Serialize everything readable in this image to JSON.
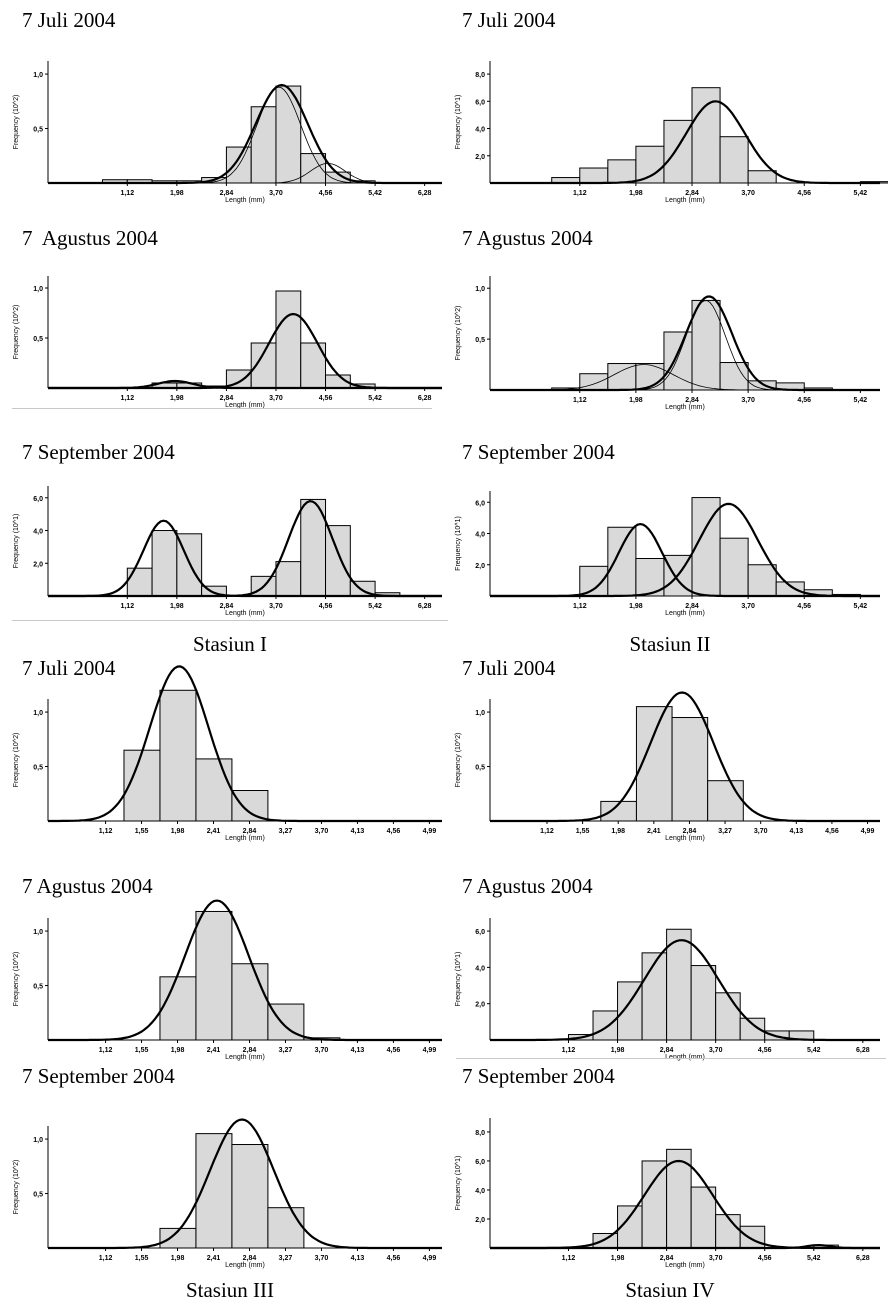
{
  "station_labels": [
    "Stasiun I",
    "Stasiun II",
    "Stasiun III",
    "Stasiun IV"
  ],
  "colors": {
    "bar_fill": "#d9d9d9",
    "bar_stroke": "#000000",
    "curve": "#000000",
    "axis": "#000000"
  },
  "chart_data": [
    {
      "type": "bar",
      "station": "Stasiun I",
      "title": "7 Juli 2004",
      "xlabel": "Length (mm)",
      "ylabel": "Frequency (10^2)",
      "x_ticks": [
        "1,12",
        "1,98",
        "2,84",
        "3,70",
        "4,56",
        "5,42",
        "6,28"
      ],
      "y_ticks": [
        "0,5",
        "1,0"
      ],
      "bins": [
        {
          "from": 0.69,
          "to": 1.12,
          "value": 0.03
        },
        {
          "from": 1.12,
          "to": 1.55,
          "value": 0.03
        },
        {
          "from": 1.55,
          "to": 1.98,
          "value": 0.02
        },
        {
          "from": 1.98,
          "to": 2.41,
          "value": 0.02
        },
        {
          "from": 2.41,
          "to": 2.84,
          "value": 0.05
        },
        {
          "from": 2.84,
          "to": 3.27,
          "value": 0.33
        },
        {
          "from": 3.27,
          "to": 3.7,
          "value": 0.7
        },
        {
          "from": 3.7,
          "to": 4.13,
          "value": 0.89
        },
        {
          "from": 4.13,
          "to": 4.56,
          "value": 0.27
        },
        {
          "from": 4.56,
          "to": 4.99,
          "value": 0.1
        },
        {
          "from": 4.99,
          "to": 5.42,
          "value": 0.02
        }
      ],
      "curves": [
        {
          "mean": 3.8,
          "sd": 0.45,
          "peak": 0.9,
          "total": true
        },
        {
          "mean": 3.75,
          "sd": 0.38,
          "peak": 0.88,
          "total": false
        },
        {
          "mean": 4.6,
          "sd": 0.3,
          "peak": 0.18,
          "total": false
        }
      ]
    },
    {
      "type": "bar",
      "station": "Stasiun II",
      "title": "7 Juli 2004",
      "xlabel": "Length (mm)",
      "ylabel": "Frequency (10^1)",
      "x_ticks": [
        "1,12",
        "1,98",
        "2,84",
        "3,70",
        "4,56",
        "5,42"
      ],
      "y_ticks": [
        "2,0",
        "4,0",
        "6,0",
        "8,0"
      ],
      "bins": [
        {
          "from": 0.69,
          "to": 1.12,
          "value": 0.4
        },
        {
          "from": 1.12,
          "to": 1.55,
          "value": 1.1
        },
        {
          "from": 1.55,
          "to": 1.98,
          "value": 1.7
        },
        {
          "from": 1.98,
          "to": 2.41,
          "value": 2.7
        },
        {
          "from": 2.41,
          "to": 2.84,
          "value": 4.6
        },
        {
          "from": 2.84,
          "to": 3.27,
          "value": 7.0
        },
        {
          "from": 3.27,
          "to": 3.7,
          "value": 3.4
        },
        {
          "from": 3.7,
          "to": 4.13,
          "value": 0.9
        },
        {
          "from": 5.42,
          "to": 5.85,
          "value": 0.1
        }
      ],
      "curves": [
        {
          "mean": 3.2,
          "sd": 0.45,
          "peak": 6.0,
          "total": true
        }
      ]
    },
    {
      "type": "bar",
      "station": "Stasiun I",
      "title": "7  Agustus 2004",
      "xlabel": "Length (mm)",
      "ylabel": "Frequency (10^2)",
      "x_ticks": [
        "1,12",
        "1,98",
        "2,84",
        "3,70",
        "4,56",
        "5,42",
        "6,28"
      ],
      "y_ticks": [
        "0,5",
        "1,0"
      ],
      "bins": [
        {
          "from": 1.55,
          "to": 1.98,
          "value": 0.05
        },
        {
          "from": 1.98,
          "to": 2.41,
          "value": 0.05
        },
        {
          "from": 2.41,
          "to": 2.84,
          "value": 0.02
        },
        {
          "from": 2.84,
          "to": 3.27,
          "value": 0.18
        },
        {
          "from": 3.27,
          "to": 3.7,
          "value": 0.45
        },
        {
          "from": 3.7,
          "to": 4.13,
          "value": 0.97
        },
        {
          "from": 4.13,
          "to": 4.56,
          "value": 0.45
        },
        {
          "from": 4.56,
          "to": 4.99,
          "value": 0.13
        },
        {
          "from": 4.99,
          "to": 5.42,
          "value": 0.04
        }
      ],
      "curves": [
        {
          "mean": 1.95,
          "sd": 0.3,
          "peak": 0.07,
          "total": true
        },
        {
          "mean": 4.0,
          "sd": 0.42,
          "peak": 0.74,
          "total": true
        }
      ]
    },
    {
      "type": "bar",
      "station": "Stasiun II",
      "title": "7 Agustus 2004",
      "xlabel": "Length (mm)",
      "ylabel": "Frequency (10^2)",
      "x_ticks": [
        "1,12",
        "1,98",
        "2,84",
        "3,70",
        "4,56",
        "5,42"
      ],
      "y_ticks": [
        "0,5",
        "1,0"
      ],
      "bins": [
        {
          "from": 0.69,
          "to": 1.12,
          "value": 0.02
        },
        {
          "from": 1.12,
          "to": 1.55,
          "value": 0.16
        },
        {
          "from": 1.55,
          "to": 1.98,
          "value": 0.26
        },
        {
          "from": 1.98,
          "to": 2.41,
          "value": 0.26
        },
        {
          "from": 2.41,
          "to": 2.84,
          "value": 0.57
        },
        {
          "from": 2.84,
          "to": 3.27,
          "value": 0.88
        },
        {
          "from": 3.27,
          "to": 3.7,
          "value": 0.27
        },
        {
          "from": 3.7,
          "to": 4.13,
          "value": 0.09
        },
        {
          "from": 4.13,
          "to": 4.56,
          "value": 0.07
        },
        {
          "from": 4.56,
          "to": 4.99,
          "value": 0.02
        }
      ],
      "curves": [
        {
          "mean": 3.1,
          "sd": 0.35,
          "peak": 0.92,
          "total": true
        },
        {
          "mean": 2.1,
          "sd": 0.45,
          "peak": 0.25,
          "total": false
        },
        {
          "mean": 3.05,
          "sd": 0.3,
          "peak": 0.88,
          "total": false
        }
      ]
    },
    {
      "type": "bar",
      "station": "Stasiun I",
      "title": "7 September 2004",
      "xlabel": "Length (mm)",
      "ylabel": "Frequency (10^1)",
      "x_ticks": [
        "1,12",
        "1,98",
        "2,84",
        "3,70",
        "4,56",
        "5,42",
        "6,28"
      ],
      "y_ticks": [
        "2,0",
        "4,0",
        "6,0"
      ],
      "bins": [
        {
          "from": 1.12,
          "to": 1.55,
          "value": 1.7
        },
        {
          "from": 1.55,
          "to": 1.98,
          "value": 4.0
        },
        {
          "from": 1.98,
          "to": 2.41,
          "value": 3.8
        },
        {
          "from": 2.41,
          "to": 2.84,
          "value": 0.6
        },
        {
          "from": 3.27,
          "to": 3.7,
          "value": 1.2
        },
        {
          "from": 3.7,
          "to": 4.13,
          "value": 2.1
        },
        {
          "from": 4.13,
          "to": 4.56,
          "value": 5.9
        },
        {
          "from": 4.56,
          "to": 4.99,
          "value": 4.3
        },
        {
          "from": 4.99,
          "to": 5.42,
          "value": 0.9
        },
        {
          "from": 5.42,
          "to": 5.85,
          "value": 0.2
        }
      ],
      "curves": [
        {
          "mean": 1.75,
          "sd": 0.35,
          "peak": 4.6,
          "total": true
        },
        {
          "mean": 4.3,
          "sd": 0.38,
          "peak": 5.8,
          "total": true
        }
      ]
    },
    {
      "type": "bar",
      "station": "Stasiun II",
      "title": "7 September 2004",
      "xlabel": "Length (mm)",
      "ylabel": "Frequency (10^1)",
      "x_ticks": [
        "1,12",
        "1,98",
        "2,84",
        "3,70",
        "4,56",
        "5,42"
      ],
      "y_ticks": [
        "2,0",
        "4,0",
        "6,0"
      ],
      "bins": [
        {
          "from": 1.12,
          "to": 1.55,
          "value": 1.9
        },
        {
          "from": 1.55,
          "to": 1.98,
          "value": 4.4
        },
        {
          "from": 1.98,
          "to": 2.41,
          "value": 2.4
        },
        {
          "from": 2.41,
          "to": 2.84,
          "value": 2.6
        },
        {
          "from": 2.84,
          "to": 3.27,
          "value": 6.3
        },
        {
          "from": 3.27,
          "to": 3.7,
          "value": 3.7
        },
        {
          "from": 3.7,
          "to": 4.13,
          "value": 2.0
        },
        {
          "from": 4.13,
          "to": 4.56,
          "value": 0.9
        },
        {
          "from": 4.56,
          "to": 4.99,
          "value": 0.4
        },
        {
          "from": 4.99,
          "to": 5.42,
          "value": 0.1
        }
      ],
      "curves": [
        {
          "mean": 2.05,
          "sd": 0.33,
          "peak": 4.6,
          "total": true
        },
        {
          "mean": 3.4,
          "sd": 0.45,
          "peak": 5.9,
          "total": true
        }
      ]
    },
    {
      "type": "bar",
      "station": "Stasiun III",
      "title": "7 Juli 2004",
      "xlabel": "Length (mm)",
      "ylabel": "Frequency (10^2)",
      "x_ticks": [
        "1,12",
        "1,55",
        "1,98",
        "2,41",
        "2,84",
        "3,27",
        "3,70",
        "4,13",
        "4,56",
        "4,99"
      ],
      "y_ticks": [
        "0,5",
        "1,0"
      ],
      "bins": [
        {
          "from": 1.34,
          "to": 1.77,
          "value": 0.65
        },
        {
          "from": 1.77,
          "to": 2.2,
          "value": 1.2
        },
        {
          "from": 2.2,
          "to": 2.63,
          "value": 0.57
        },
        {
          "from": 2.63,
          "to": 3.06,
          "value": 0.28
        }
      ],
      "curves": [
        {
          "mean": 2.0,
          "sd": 0.35,
          "peak": 1.42,
          "total": true
        }
      ]
    },
    {
      "type": "bar",
      "station": "Stasiun IV",
      "title": "7 Juli 2004",
      "xlabel": "Length (mm)",
      "ylabel": "Frequency (10^2)",
      "x_ticks": [
        "1,12",
        "1,55",
        "1,98",
        "2,41",
        "2,84",
        "3,27",
        "3,70",
        "4,13",
        "4,56",
        "4,99"
      ],
      "y_ticks": [
        "0,5",
        "1,0"
      ],
      "bins": [
        {
          "from": 1.77,
          "to": 2.2,
          "value": 0.18
        },
        {
          "from": 2.2,
          "to": 2.63,
          "value": 1.05
        },
        {
          "from": 2.63,
          "to": 3.06,
          "value": 0.95
        },
        {
          "from": 3.06,
          "to": 3.49,
          "value": 0.37
        }
      ],
      "curves": [
        {
          "mean": 2.75,
          "sd": 0.38,
          "peak": 1.18,
          "total": true
        }
      ]
    },
    {
      "type": "bar",
      "station": "Stasiun III",
      "title": "7 Agustus 2004",
      "xlabel": "Length (mm)",
      "ylabel": "Frequency (10^2)",
      "x_ticks": [
        "1,12",
        "1,55",
        "1,98",
        "2,41",
        "2,84",
        "3,27",
        "3,70",
        "4,13",
        "4,56",
        "4,99"
      ],
      "y_ticks": [
        "0,5",
        "1,0"
      ],
      "bins": [
        {
          "from": 1.77,
          "to": 2.2,
          "value": 0.58
        },
        {
          "from": 2.2,
          "to": 2.63,
          "value": 1.18
        },
        {
          "from": 2.63,
          "to": 3.06,
          "value": 0.7
        },
        {
          "from": 3.06,
          "to": 3.49,
          "value": 0.33
        },
        {
          "from": 3.49,
          "to": 3.92,
          "value": 0.02
        }
      ],
      "curves": [
        {
          "mean": 2.45,
          "sd": 0.38,
          "peak": 1.28,
          "total": true
        }
      ]
    },
    {
      "type": "bar",
      "station": "Stasiun IV",
      "title": "7 Agustus 2004",
      "xlabel": "Length (mm)",
      "ylabel": "Frequency (10^1)",
      "x_ticks": [
        "1,12",
        "1,98",
        "2,84",
        "3,70",
        "4,56",
        "5,42",
        "6,28"
      ],
      "y_ticks": [
        "2,0",
        "4,0",
        "6,0"
      ],
      "bins": [
        {
          "from": 1.12,
          "to": 1.55,
          "value": 0.3
        },
        {
          "from": 1.55,
          "to": 1.98,
          "value": 1.6
        },
        {
          "from": 1.98,
          "to": 2.41,
          "value": 3.2
        },
        {
          "from": 2.41,
          "to": 2.84,
          "value": 4.8
        },
        {
          "from": 2.84,
          "to": 3.27,
          "value": 6.1
        },
        {
          "from": 3.27,
          "to": 3.7,
          "value": 4.1
        },
        {
          "from": 3.7,
          "to": 4.13,
          "value": 2.6
        },
        {
          "from": 4.13,
          "to": 4.56,
          "value": 1.2
        },
        {
          "from": 4.56,
          "to": 4.99,
          "value": 0.5
        },
        {
          "from": 4.99,
          "to": 5.42,
          "value": 0.5
        }
      ],
      "curves": [
        {
          "mean": 3.1,
          "sd": 0.65,
          "peak": 5.5,
          "total": true
        }
      ]
    },
    {
      "type": "bar",
      "station": "Stasiun III",
      "title": "7 September 2004",
      "xlabel": "Length (mm)",
      "ylabel": "Frequency (10^2)",
      "x_ticks": [
        "1,12",
        "1,55",
        "1,98",
        "2,41",
        "2,84",
        "3,27",
        "3,70",
        "4,13",
        "4,56",
        "4,99"
      ],
      "y_ticks": [
        "0,5",
        "1,0"
      ],
      "bins": [
        {
          "from": 1.77,
          "to": 2.2,
          "value": 0.18
        },
        {
          "from": 2.2,
          "to": 2.63,
          "value": 1.05
        },
        {
          "from": 2.63,
          "to": 3.06,
          "value": 0.95
        },
        {
          "from": 3.06,
          "to": 3.49,
          "value": 0.37
        }
      ],
      "curves": [
        {
          "mean": 2.75,
          "sd": 0.38,
          "peak": 1.18,
          "total": true
        }
      ]
    },
    {
      "type": "bar",
      "station": "Stasiun IV",
      "title": "7 September 2004",
      "xlabel": "Length (mm)",
      "ylabel": "Frequency (10^1)",
      "x_ticks": [
        "1,12",
        "1,98",
        "2,84",
        "3,70",
        "4,56",
        "5,42",
        "6,28"
      ],
      "y_ticks": [
        "2,0",
        "4,0",
        "6,0",
        "8,0"
      ],
      "bins": [
        {
          "from": 1.55,
          "to": 1.98,
          "value": 1.0
        },
        {
          "from": 1.98,
          "to": 2.41,
          "value": 2.9
        },
        {
          "from": 2.41,
          "to": 2.84,
          "value": 6.0
        },
        {
          "from": 2.84,
          "to": 3.27,
          "value": 6.8
        },
        {
          "from": 3.27,
          "to": 3.7,
          "value": 4.2
        },
        {
          "from": 3.7,
          "to": 4.13,
          "value": 2.3
        },
        {
          "from": 4.13,
          "to": 4.56,
          "value": 1.5
        },
        {
          "from": 5.42,
          "to": 5.85,
          "value": 0.2
        }
      ],
      "curves": [
        {
          "mean": 3.05,
          "sd": 0.6,
          "peak": 6.0,
          "total": true
        },
        {
          "mean": 5.5,
          "sd": 0.2,
          "peak": 0.2,
          "total": true
        }
      ]
    }
  ]
}
